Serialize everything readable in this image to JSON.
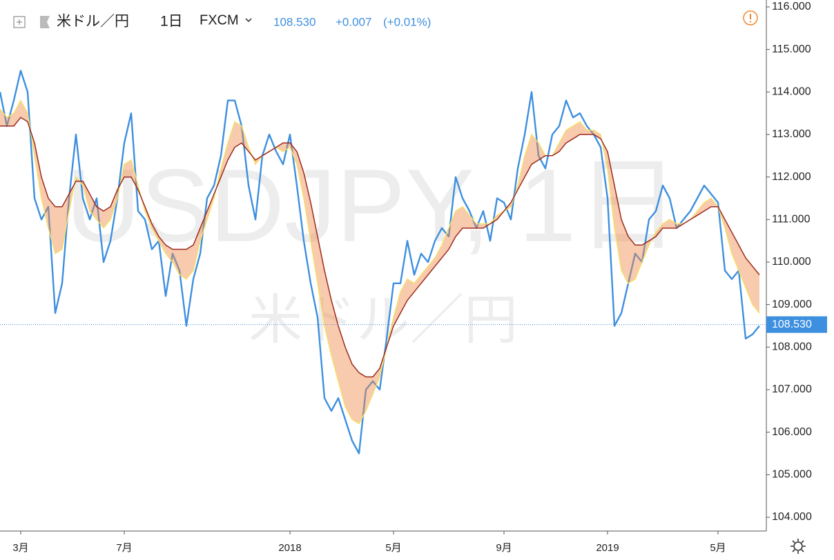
{
  "header": {
    "symbol": "米ドル／円",
    "interval": "1日",
    "source": "FXCM",
    "price": "108.530",
    "change": "+0.007",
    "change_pct": "(+0.01%)"
  },
  "watermark": {
    "symbol": "USDJPY, 1日",
    "name": "米ドル／円"
  },
  "chart_data": {
    "type": "line",
    "categories": [
      null,
      null,
      null,
      "3月",
      null,
      null,
      null,
      null,
      null,
      null,
      null,
      null,
      null,
      null,
      null,
      null,
      null,
      null,
      "7月",
      null,
      null,
      null,
      null,
      null,
      null,
      null,
      null,
      null,
      null,
      null,
      null,
      null,
      null,
      null,
      null,
      null,
      null,
      null,
      null,
      null,
      null,
      null,
      "2018",
      null,
      null,
      null,
      null,
      null,
      null,
      null,
      null,
      null,
      null,
      null,
      null,
      null,
      null,
      "5月",
      null,
      null,
      null,
      null,
      null,
      null,
      null,
      null,
      null,
      null,
      null,
      null,
      null,
      null,
      null,
      "9月",
      null,
      null,
      null,
      null,
      null,
      null,
      null,
      null,
      null,
      null,
      null,
      null,
      null,
      null,
      "2019",
      null,
      null,
      null,
      null,
      null,
      null,
      null,
      null,
      null,
      null,
      null,
      null,
      null,
      null,
      null,
      "5月",
      null,
      null,
      null,
      null,
      null,
      null
    ],
    "series": [
      {
        "color": "#3d8fdf",
        "values": [
          114.0,
          113.2,
          113.8,
          114.5,
          114.0,
          111.5,
          111.0,
          111.3,
          108.8,
          109.5,
          111.5,
          113.0,
          111.5,
          111.0,
          111.5,
          110.0,
          110.5,
          111.5,
          112.8,
          113.5,
          111.2,
          111.0,
          110.3,
          110.5,
          109.2,
          110.2,
          109.8,
          108.5,
          109.6,
          110.2,
          111.5,
          111.8,
          112.5,
          113.8,
          113.8,
          113.2,
          111.8,
          111.0,
          112.5,
          113.0,
          112.6,
          112.3,
          113.0,
          111.8,
          110.5,
          109.5,
          108.7,
          106.8,
          106.5,
          106.8,
          106.3,
          105.8,
          105.5,
          107.0,
          107.2,
          107.0,
          108.2,
          109.5,
          109.5,
          110.5,
          109.7,
          110.2,
          110.0,
          110.5,
          110.8,
          110.6,
          112.0,
          111.5,
          111.2,
          110.8,
          111.2,
          110.5,
          111.5,
          111.4,
          111.0,
          112.2,
          113.0,
          114.0,
          112.5,
          112.2,
          113.0,
          113.2,
          113.8,
          113.4,
          113.5,
          113.2,
          113.0,
          112.7,
          111.5,
          108.5,
          108.8,
          109.5,
          110.2,
          110.0,
          111.0,
          111.2,
          111.8,
          111.5,
          110.8,
          111.0,
          111.2,
          111.5,
          111.8,
          111.6,
          111.4,
          109.8,
          109.6,
          109.8,
          108.2,
          108.3,
          108.5
        ]
      },
      {
        "color": "#f5e06a",
        "values": [
          113.6,
          113.4,
          113.5,
          113.8,
          113.5,
          112.5,
          111.5,
          110.8,
          110.2,
          110.3,
          111.2,
          112.0,
          111.8,
          111.2,
          111.0,
          110.8,
          111.0,
          111.5,
          112.3,
          112.4,
          111.8,
          111.2,
          110.8,
          110.5,
          110.2,
          110.0,
          109.7,
          109.6,
          109.8,
          110.5,
          111.0,
          111.5,
          112.2,
          112.8,
          113.3,
          113.2,
          112.7,
          112.3,
          112.5,
          112.6,
          112.7,
          112.6,
          112.7,
          112.3,
          111.5,
          110.5,
          109.5,
          108.5,
          107.8,
          107.2,
          106.6,
          106.3,
          106.2,
          106.5,
          106.9,
          107.3,
          108.0,
          108.7,
          109.3,
          109.6,
          109.5,
          109.7,
          109.9,
          110.1,
          110.4,
          110.8,
          111.2,
          111.3,
          111.1,
          110.9,
          110.9,
          110.9,
          111.1,
          111.2,
          111.3,
          111.8,
          112.5,
          113.0,
          112.8,
          112.5,
          112.5,
          112.8,
          113.1,
          113.2,
          113.3,
          113.1,
          113.1,
          113.0,
          112.2,
          110.8,
          109.8,
          109.5,
          109.6,
          110.0,
          110.4,
          110.7,
          110.9,
          111.0,
          110.9,
          110.9,
          111.0,
          111.2,
          111.4,
          111.5,
          111.3,
          110.8,
          110.2,
          109.8,
          109.4,
          109.0,
          108.8
        ]
      },
      {
        "color": "#9b2a1e",
        "values": [
          113.2,
          113.2,
          113.2,
          113.4,
          113.3,
          112.8,
          112.0,
          111.5,
          111.3,
          111.3,
          111.6,
          111.9,
          111.9,
          111.6,
          111.3,
          111.2,
          111.3,
          111.7,
          112.0,
          112.0,
          111.7,
          111.3,
          110.9,
          110.6,
          110.4,
          110.3,
          110.3,
          110.3,
          110.4,
          110.8,
          111.2,
          111.6,
          112.0,
          112.4,
          112.7,
          112.8,
          112.6,
          112.4,
          112.5,
          112.6,
          112.7,
          112.8,
          112.8,
          112.6,
          112.1,
          111.4,
          110.6,
          109.8,
          109.1,
          108.5,
          108.0,
          107.6,
          107.4,
          107.3,
          107.3,
          107.5,
          108.0,
          108.5,
          108.8,
          109.1,
          109.3,
          109.5,
          109.7,
          109.9,
          110.1,
          110.3,
          110.6,
          110.8,
          110.8,
          110.8,
          110.8,
          110.9,
          111.0,
          111.2,
          111.4,
          111.7,
          112.0,
          112.3,
          112.4,
          112.5,
          112.5,
          112.6,
          112.8,
          112.9,
          113.0,
          113.0,
          113.0,
          112.9,
          112.6,
          111.8,
          111.0,
          110.6,
          110.4,
          110.4,
          110.5,
          110.6,
          110.8,
          110.8,
          110.8,
          110.9,
          111.0,
          111.1,
          111.2,
          111.3,
          111.3,
          111.0,
          110.7,
          110.4,
          110.1,
          109.9,
          109.7
        ]
      }
    ],
    "ribbon_color": "#f08a4b",
    "last_price": {
      "value": 108.53,
      "label": "108.530"
    },
    "ylim": [
      104,
      116
    ],
    "yticks": [
      {
        "value": 104,
        "label": "104.000"
      },
      {
        "value": 105,
        "label": "105.000"
      },
      {
        "value": 106,
        "label": "106.000"
      },
      {
        "value": 107,
        "label": "107.000"
      },
      {
        "value": 108,
        "label": "108.000"
      },
      {
        "value": 109,
        "label": "109.000"
      },
      {
        "value": 110,
        "label": "110.000"
      },
      {
        "value": 111,
        "label": "111.000"
      },
      {
        "value": 112,
        "label": "112.000"
      },
      {
        "value": 113,
        "label": "113.000"
      },
      {
        "value": 114,
        "label": "114.000"
      },
      {
        "value": 115,
        "label": "115.000"
      },
      {
        "value": 116,
        "label": "116.000"
      }
    ]
  }
}
